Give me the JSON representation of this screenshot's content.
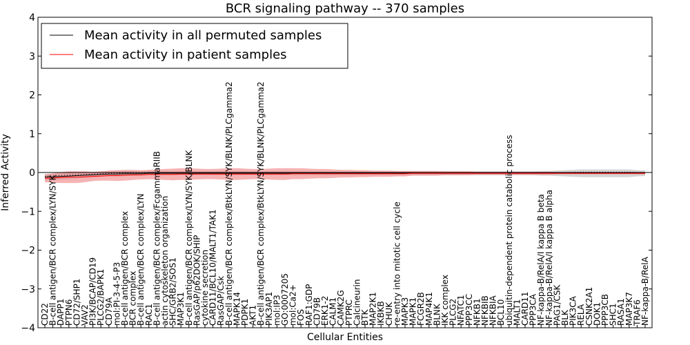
{
  "chart_data": {
    "type": "line",
    "title": "BCR signaling pathway -- 370 samples",
    "xlabel": "Cellular Entities",
    "ylabel": "Inferred Activity",
    "ylim": [
      -4,
      4
    ],
    "yticks": [
      4,
      3,
      2,
      1,
      0,
      -1,
      -2,
      -3,
      -4
    ],
    "legend_position": "top-left",
    "colors": {
      "permuted": "#000000",
      "patient": "#ff0000",
      "patient_band": "#f08080",
      "permuted_band": "#b0b0b0"
    },
    "categories": [
      "CD22",
      "B-cell antigen/BCR complex/LYN/SYK",
      "DAPP1",
      "PTPN6",
      "CD72/SHP1",
      "VAV2",
      "PI3K/BCAP/CD19",
      "PLCG2/BAPK1",
      "CD79A",
      "mol:PI-3-4-5-P3",
      "B-cell antigen/BCR complex",
      "BCR complex",
      "B-cell antigen/BCR complex/LYN",
      "RAC1",
      "B-cell antigen/BCR complex/FcgammaRIIB",
      "actin cytoskeleton organization",
      "SHC/GRB2/SOS1",
      "MAP3K1",
      "B-cell antigen/BCR complex/LYN/SYK/BLNK",
      "RasGAP/p62DOK/SHIP",
      "cytokine secretion",
      "CARD11/BCL10/MALT1/TAK1",
      "RasGAP/Csk",
      "B-cell antigen/BCR complex/BtkLYN/SYK/BLNK/PLCgamma2",
      "MAPK14",
      "PDPK1",
      "AKT1",
      "B-cell antigen/BCR complex/BtkLYN/SYK/BLNK/PLCgamma2",
      "PIK3AP1",
      "mol:IP3",
      "GO:0007205",
      "mol:Ca2+",
      "FOS",
      "RAF1:GDP",
      "CD79B",
      "ERK1-2",
      "CALM1",
      "CAMK2G",
      "PTPRC",
      "Calcineurin",
      "BTK",
      "MAP2K1",
      "IKBKB",
      "CHUK",
      "re-entry into mitotic cell cycle",
      "MAPK3",
      "MAPK1",
      "FCGR2B",
      "MAP4K1",
      "BLNK",
      "IKK complex",
      "PLCG2",
      "NFATC1",
      "PPP3CC",
      "NFKB1",
      "NFKBIB",
      "NFKBIA",
      "BCL10",
      "ubiquitin-dependent protein catabolic process",
      "MALT1",
      "CARD11",
      "PPP3CA",
      "NF-kappa-B/RelA/I kappa B beta",
      "NF-kappa-B/RelA/I kappa B alpha",
      "PAG1/CSK",
      "BLK",
      "PIK3CA",
      "RELA",
      "CSNK2A1",
      "DOK1",
      "PPP3CB",
      "SHC1",
      "RASA1",
      "MAP3K7",
      "TRAF6",
      "NF-kappa-B/RelA"
    ],
    "series": [
      {
        "name": "Mean activity in all permuted samples",
        "values": [
          -0.12,
          -0.11,
          -0.1,
          -0.09,
          -0.08,
          -0.07,
          -0.06,
          -0.05,
          -0.04,
          -0.04,
          -0.03,
          -0.03,
          -0.03,
          -0.02,
          -0.02,
          -0.02,
          -0.02,
          -0.02,
          -0.02,
          -0.02,
          -0.02,
          -0.02,
          -0.02,
          -0.02,
          -0.02,
          -0.02,
          -0.02,
          -0.02,
          -0.02,
          -0.02,
          -0.02,
          -0.02,
          -0.02,
          -0.02,
          -0.02,
          -0.02,
          -0.02,
          -0.02,
          -0.02,
          -0.02,
          -0.02,
          -0.02,
          -0.02,
          -0.02,
          -0.02,
          -0.02,
          -0.02,
          -0.02,
          -0.02,
          -0.02,
          -0.02,
          -0.02,
          -0.02,
          -0.02,
          -0.02,
          -0.02,
          -0.02,
          -0.02,
          -0.02,
          -0.02,
          -0.02,
          -0.02,
          -0.02,
          -0.02,
          -0.02,
          -0.02,
          -0.02,
          -0.02,
          -0.02,
          -0.02,
          -0.02,
          -0.02,
          -0.02,
          -0.02,
          -0.02,
          -0.02
        ],
        "std": [
          0.08,
          0.08,
          0.08,
          0.08,
          0.07,
          0.07,
          0.07,
          0.06,
          0.06,
          0.06,
          0.06,
          0.06,
          0.05,
          0.05,
          0.05,
          0.05,
          0.05,
          0.05,
          0.05,
          0.05,
          0.05,
          0.05,
          0.05,
          0.05,
          0.05,
          0.05,
          0.05,
          0.05,
          0.05,
          0.05,
          0.05,
          0.05,
          0.05,
          0.05,
          0.05,
          0.05,
          0.05,
          0.05,
          0.05,
          0.05,
          0.05,
          0.05,
          0.05,
          0.05,
          0.05,
          0.05,
          0.05,
          0.05,
          0.05,
          0.05,
          0.05,
          0.05,
          0.05,
          0.05,
          0.05,
          0.05,
          0.05,
          0.05,
          0.05,
          0.05,
          0.05,
          0.05,
          0.06,
          0.06,
          0.07,
          0.08,
          0.09,
          0.1,
          0.1,
          0.1,
          0.1,
          0.1,
          0.1,
          0.1,
          0.08,
          0.07
        ]
      },
      {
        "name": "Mean activity in patient samples",
        "values": [
          -0.15,
          -0.14,
          -0.13,
          -0.12,
          -0.12,
          -0.11,
          -0.1,
          -0.09,
          -0.08,
          -0.08,
          -0.07,
          -0.06,
          -0.06,
          -0.05,
          -0.05,
          -0.05,
          -0.05,
          -0.04,
          -0.04,
          -0.04,
          -0.04,
          -0.04,
          -0.04,
          -0.04,
          -0.04,
          -0.04,
          -0.04,
          -0.04,
          -0.04,
          -0.04,
          -0.04,
          -0.03,
          -0.03,
          -0.03,
          -0.03,
          -0.03,
          -0.03,
          -0.03,
          -0.03,
          -0.03,
          -0.03,
          -0.03,
          -0.03,
          -0.03,
          -0.03,
          -0.03,
          -0.02,
          -0.02,
          -0.02,
          -0.02,
          -0.02,
          -0.02,
          -0.02,
          -0.02,
          -0.02,
          -0.02,
          -0.02,
          -0.02,
          -0.02,
          -0.02,
          -0.02,
          -0.02,
          -0.02,
          -0.02,
          -0.02,
          -0.02,
          -0.02,
          -0.02,
          -0.02,
          -0.02,
          -0.02,
          -0.02,
          -0.02,
          -0.02,
          -0.02,
          -0.02
        ],
        "std": [
          0.1,
          0.12,
          0.14,
          0.15,
          0.15,
          0.14,
          0.12,
          0.12,
          0.13,
          0.14,
          0.14,
          0.13,
          0.12,
          0.12,
          0.13,
          0.14,
          0.15,
          0.15,
          0.15,
          0.14,
          0.13,
          0.13,
          0.14,
          0.15,
          0.15,
          0.14,
          0.13,
          0.13,
          0.14,
          0.15,
          0.15,
          0.14,
          0.14,
          0.13,
          0.12,
          0.12,
          0.11,
          0.1,
          0.1,
          0.09,
          0.09,
          0.08,
          0.08,
          0.08,
          0.07,
          0.07,
          0.06,
          0.06,
          0.06,
          0.06,
          0.05,
          0.05,
          0.05,
          0.05,
          0.04,
          0.04,
          0.04,
          0.04,
          0.04,
          0.04,
          0.04,
          0.04,
          0.04,
          0.04,
          0.03,
          0.03,
          0.03,
          0.03,
          0.03,
          0.03,
          0.03,
          0.03,
          0.03,
          0.03,
          0.03,
          0.03
        ]
      }
    ]
  }
}
